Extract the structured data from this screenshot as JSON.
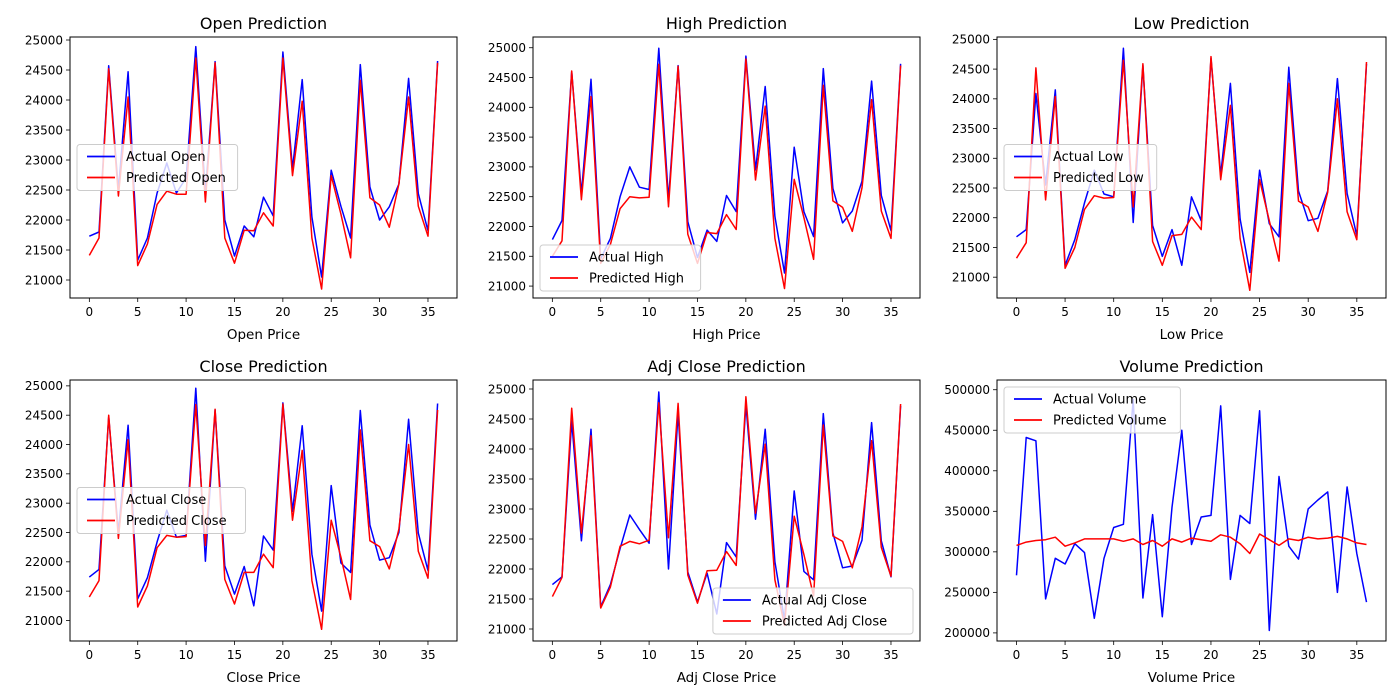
{
  "colors": {
    "actual": "#0000ff",
    "predicted": "#ff0000"
  },
  "chart_data": [
    {
      "type": "line",
      "title": "Open Prediction",
      "xlabel": "Open Price",
      "ylabel": "",
      "xlim": [
        -2,
        38
      ],
      "ylim": [
        20700,
        25050
      ],
      "xticks": [
        0,
        5,
        10,
        15,
        20,
        25,
        30,
        35
      ],
      "yticks": [
        21000,
        21500,
        22000,
        22500,
        23000,
        23500,
        24000,
        24500,
        25000
      ],
      "legend_loc": "center-left",
      "x": [
        0,
        1,
        2,
        3,
        4,
        5,
        6,
        7,
        8,
        9,
        10,
        11,
        12,
        13,
        14,
        15,
        16,
        17,
        18,
        19,
        20,
        21,
        22,
        23,
        24,
        25,
        26,
        27,
        28,
        29,
        30,
        31,
        32,
        33,
        34,
        35,
        36
      ],
      "series": [
        {
          "name": "Actual Open",
          "color": "#0000ff",
          "values": [
            21730,
            21800,
            24570,
            22500,
            24470,
            21330,
            21700,
            22450,
            22950,
            22450,
            22700,
            24890,
            22450,
            24640,
            22000,
            21400,
            21900,
            21720,
            22380,
            22070,
            24800,
            22850,
            24340,
            22050,
            21050,
            22830,
            22230,
            21700,
            24590,
            22550,
            22000,
            22220,
            22600,
            24360,
            22440,
            21820,
            24650
          ]
        },
        {
          "name": "Predicted Open",
          "color": "#ff0000",
          "values": [
            21410,
            21700,
            24520,
            22400,
            24050,
            21240,
            21600,
            22260,
            22480,
            22430,
            22430,
            24700,
            22300,
            24620,
            21700,
            21280,
            21830,
            21820,
            22120,
            21900,
            24700,
            22740,
            23980,
            21700,
            20850,
            22740,
            22100,
            21370,
            24330,
            22370,
            22250,
            21880,
            22600,
            24050,
            22230,
            21730,
            24620
          ]
        }
      ]
    },
    {
      "type": "line",
      "title": "High Prediction",
      "xlabel": "High Price",
      "ylabel": "",
      "xlim": [
        -2,
        38
      ],
      "ylim": [
        20800,
        25180
      ],
      "xticks": [
        0,
        5,
        10,
        15,
        20,
        25,
        30,
        35
      ],
      "yticks": [
        21000,
        21500,
        22000,
        22500,
        23000,
        23500,
        24000,
        24500,
        25000
      ],
      "legend_loc": "bottom-left",
      "x": [
        0,
        1,
        2,
        3,
        4,
        5,
        6,
        7,
        8,
        9,
        10,
        11,
        12,
        13,
        14,
        15,
        16,
        17,
        18,
        19,
        20,
        21,
        22,
        23,
        24,
        25,
        26,
        27,
        28,
        29,
        30,
        31,
        32,
        33,
        34,
        35,
        36
      ],
      "series": [
        {
          "name": "Actual High",
          "color": "#0000ff",
          "values": [
            21780,
            22100,
            24600,
            22550,
            24470,
            21460,
            21800,
            22500,
            23000,
            22660,
            22620,
            24990,
            22450,
            24700,
            22080,
            21480,
            21940,
            21750,
            22520,
            22250,
            24860,
            22950,
            24350,
            22170,
            21220,
            23330,
            22250,
            21830,
            24650,
            22640,
            22060,
            22260,
            22760,
            24440,
            22520,
            21930,
            24730
          ]
        },
        {
          "name": "Predicted High",
          "color": "#ff0000",
          "values": [
            21500,
            21760,
            24610,
            22450,
            24180,
            21380,
            21700,
            22300,
            22500,
            22480,
            22490,
            24720,
            22330,
            24690,
            21870,
            21380,
            21900,
            21880,
            22200,
            21950,
            24810,
            22780,
            24020,
            21800,
            20960,
            22790,
            22150,
            21450,
            24370,
            22430,
            22320,
            21920,
            22650,
            24130,
            22260,
            21800,
            24700
          ]
        }
      ]
    },
    {
      "type": "line",
      "title": "Low Prediction",
      "xlabel": "Low Price",
      "ylabel": "",
      "xlim": [
        -2,
        38
      ],
      "ylim": [
        20650,
        25040
      ],
      "xticks": [
        0,
        5,
        10,
        15,
        20,
        25,
        30,
        35
      ],
      "yticks": [
        21000,
        21500,
        22000,
        22500,
        23000,
        23500,
        24000,
        24500,
        25000
      ],
      "legend_loc": "center-left",
      "x": [
        0,
        1,
        2,
        3,
        4,
        5,
        6,
        7,
        8,
        9,
        10,
        11,
        12,
        13,
        14,
        15,
        16,
        17,
        18,
        19,
        20,
        21,
        22,
        23,
        24,
        25,
        26,
        27,
        28,
        29,
        30,
        31,
        32,
        33,
        34,
        35,
        36
      ],
      "series": [
        {
          "name": "Actual Low",
          "color": "#0000ff",
          "values": [
            21680,
            21800,
            24090,
            22550,
            24150,
            21200,
            21630,
            22250,
            22800,
            22400,
            22350,
            24850,
            21920,
            24560,
            21870,
            21350,
            21800,
            21200,
            22350,
            21950,
            24680,
            22720,
            24260,
            21980,
            21080,
            22800,
            21900,
            21680,
            24530,
            22450,
            21950,
            21990,
            22450,
            24340,
            22410,
            21700,
            24590
          ]
        },
        {
          "name": "Predicted Low",
          "color": "#ff0000",
          "values": [
            21320,
            21580,
            24520,
            22300,
            24040,
            21150,
            21500,
            22140,
            22370,
            22330,
            22340,
            24650,
            22180,
            24590,
            21600,
            21200,
            21700,
            21720,
            22010,
            21800,
            24710,
            22640,
            23890,
            21650,
            20780,
            22640,
            21950,
            21270,
            24260,
            22280,
            22180,
            21770,
            22430,
            24000,
            22100,
            21630,
            24620
          ]
        }
      ]
    },
    {
      "type": "line",
      "title": "Close Prediction",
      "xlabel": "Close Price",
      "ylabel": "",
      "xlim": [
        -2,
        38
      ],
      "ylim": [
        20650,
        25100
      ],
      "xticks": [
        0,
        5,
        10,
        15,
        20,
        25,
        30,
        35
      ],
      "yticks": [
        21000,
        21500,
        22000,
        22500,
        23000,
        23500,
        24000,
        24500,
        25000
      ],
      "legend_loc": "center-left",
      "x": [
        0,
        1,
        2,
        3,
        4,
        5,
        6,
        7,
        8,
        9,
        10,
        11,
        12,
        13,
        14,
        15,
        16,
        17,
        18,
        19,
        20,
        21,
        22,
        23,
        24,
        25,
        26,
        27,
        28,
        29,
        30,
        31,
        32,
        33,
        34,
        35,
        36
      ],
      "series": [
        {
          "name": "Actual Close",
          "color": "#0000ff",
          "values": [
            21740,
            21870,
            24470,
            22500,
            24330,
            21370,
            21730,
            22340,
            22880,
            22420,
            22450,
            24960,
            22010,
            24590,
            21930,
            21450,
            21920,
            21250,
            22440,
            22200,
            24710,
            22860,
            24320,
            22130,
            21160,
            23300,
            21980,
            21820,
            24580,
            22630,
            22030,
            22070,
            22500,
            24430,
            22490,
            21850,
            24700
          ]
        },
        {
          "name": "Predicted Close",
          "color": "#ff0000",
          "values": [
            21400,
            21680,
            24500,
            22400,
            24080,
            21230,
            21590,
            22240,
            22450,
            22420,
            22430,
            24680,
            22280,
            24600,
            21700,
            21280,
            21820,
            21820,
            22130,
            21900,
            24690,
            22710,
            23900,
            21680,
            20850,
            22710,
            22080,
            21360,
            24250,
            22360,
            22260,
            21880,
            22560,
            24000,
            22180,
            21720,
            24590
          ]
        }
      ]
    },
    {
      "type": "line",
      "title": "Adj Close Prediction",
      "xlabel": "Adj Close Price",
      "ylabel": "",
      "xlim": [
        -2,
        38
      ],
      "ylim": [
        20800,
        25150
      ],
      "xticks": [
        0,
        5,
        10,
        15,
        20,
        25,
        30,
        35
      ],
      "yticks": [
        21000,
        21500,
        22000,
        22500,
        23000,
        23500,
        24000,
        24500,
        25000
      ],
      "legend_loc": "bottom-right",
      "x": [
        0,
        1,
        2,
        3,
        4,
        5,
        6,
        7,
        8,
        9,
        10,
        11,
        12,
        13,
        14,
        15,
        16,
        17,
        18,
        19,
        20,
        21,
        22,
        23,
        24,
        25,
        26,
        27,
        28,
        29,
        30,
        31,
        32,
        33,
        34,
        35,
        36
      ],
      "series": [
        {
          "name": "Actual Adj Close",
          "color": "#0000ff",
          "values": [
            21740,
            21870,
            24470,
            22470,
            24330,
            21370,
            21740,
            22340,
            22900,
            22660,
            22430,
            24950,
            22000,
            24600,
            21950,
            21450,
            21930,
            21250,
            22440,
            22200,
            24740,
            22830,
            24330,
            22120,
            21150,
            23300,
            21960,
            21820,
            24590,
            22600,
            22020,
            22050,
            22480,
            24440,
            22470,
            21870,
            24720
          ]
        },
        {
          "name": "Predicted Adj Close",
          "color": "#ff0000",
          "values": [
            21540,
            21860,
            24680,
            22600,
            24220,
            21350,
            21700,
            22380,
            22460,
            22420,
            22480,
            24770,
            22520,
            24760,
            21900,
            21430,
            21970,
            21980,
            22290,
            22060,
            24870,
            22930,
            24080,
            21820,
            21060,
            22880,
            22240,
            21550,
            24400,
            22550,
            22460,
            22020,
            22700,
            24140,
            22360,
            21880,
            24750
          ]
        }
      ]
    },
    {
      "type": "line",
      "title": "Volume Prediction",
      "xlabel": "Volume Price",
      "ylabel": "",
      "xlim": [
        -2,
        38
      ],
      "ylim": [
        190000,
        512000
      ],
      "xticks": [
        0,
        5,
        10,
        15,
        20,
        25,
        30,
        35
      ],
      "yticks": [
        200000,
        250000,
        300000,
        350000,
        400000,
        450000,
        500000
      ],
      "legend_loc": "top-left",
      "x": [
        0,
        1,
        2,
        3,
        4,
        5,
        6,
        7,
        8,
        9,
        10,
        11,
        12,
        13,
        14,
        15,
        16,
        17,
        18,
        19,
        20,
        21,
        22,
        23,
        24,
        25,
        26,
        27,
        28,
        29,
        30,
        31,
        32,
        33,
        34,
        35,
        36
      ],
      "series": [
        {
          "name": "Actual Volume",
          "color": "#0000ff",
          "values": [
            271000,
            441000,
            437000,
            242000,
            292000,
            285000,
            310000,
            299000,
            218000,
            292000,
            330000,
            334000,
            488000,
            243000,
            346000,
            220000,
            355000,
            450000,
            309000,
            343000,
            345000,
            480000,
            266000,
            345000,
            335000,
            474000,
            203000,
            393000,
            307000,
            291000,
            353000,
            364000,
            374000,
            250000,
            380000,
            298000,
            238000
          ]
        },
        {
          "name": "Predicted Volume",
          "color": "#ff0000",
          "values": [
            308000,
            312000,
            314000,
            315000,
            318000,
            307000,
            311000,
            316000,
            316000,
            316000,
            316000,
            313000,
            316000,
            309000,
            314000,
            307000,
            316000,
            312000,
            317000,
            315000,
            313000,
            321000,
            318000,
            310000,
            298000,
            322000,
            315000,
            308000,
            316000,
            314000,
            318000,
            316000,
            317000,
            319000,
            316000,
            311000,
            309000
          ]
        }
      ]
    }
  ]
}
